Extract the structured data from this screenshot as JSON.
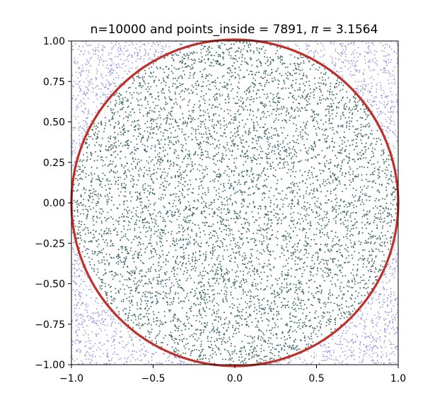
{
  "chart_data": {
    "type": "scatter",
    "title_prefix": "n=10000 and points_inside = 7891, ",
    "title_pi": "π",
    "title_suffix": " = 3.1564",
    "n": 10000,
    "points_inside": 7891,
    "pi_estimate": 3.1564,
    "xlabel": "",
    "ylabel": "",
    "xlim": [
      -1.0,
      1.0
    ],
    "ylim": [
      -1.0,
      1.0
    ],
    "grid": false,
    "aspect": "equal",
    "xticks": [
      {
        "value": -1.0,
        "label": "−1.0"
      },
      {
        "value": -0.5,
        "label": "−0.5"
      },
      {
        "value": 0.0,
        "label": "0.0"
      },
      {
        "value": 0.5,
        "label": "0.5"
      },
      {
        "value": 1.0,
        "label": "1.0"
      }
    ],
    "yticks": [
      {
        "value": 1.0,
        "label": "1.00"
      },
      {
        "value": 0.75,
        "label": "0.75"
      },
      {
        "value": 0.5,
        "label": "0.50"
      },
      {
        "value": 0.25,
        "label": "0.25"
      },
      {
        "value": 0.0,
        "label": "0.00"
      },
      {
        "value": -0.25,
        "label": "−0.25"
      },
      {
        "value": -0.5,
        "label": "−0.50"
      },
      {
        "value": -0.75,
        "label": "−0.75"
      },
      {
        "value": -1.0,
        "label": "−1.00"
      }
    ],
    "series": [
      {
        "role": "inside",
        "color": "#2f5f5a"
      },
      {
        "role": "outside",
        "color": "#3b3bdc"
      }
    ],
    "circle": {
      "center": [
        0,
        0
      ],
      "radius": 1.0,
      "color": "#c0302b"
    }
  }
}
